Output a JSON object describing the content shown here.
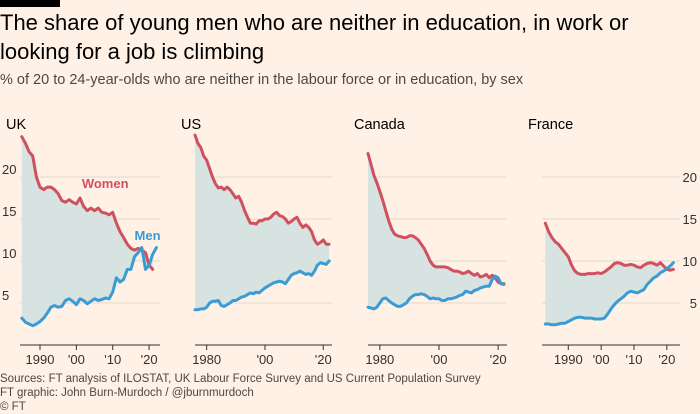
{
  "title": "The share of young men who are neither in education, in work or looking for a job is climbing",
  "subtitle": "% of 20 to 24-year-olds who are neither in the labour force or in education, by sex",
  "sources": "Sources: FT analysis of ILOSTAT, UK Labour Force Survey and US Current Population Survey",
  "credit": "FT graphic: John Burn-Murdoch / @jburnmurdoch",
  "copyright": "© FT",
  "colors": {
    "background": "#fff1e5",
    "women": "#d0505f",
    "men": "#3a9bd5",
    "fill": "#d6e3e0",
    "axis": "#33302e",
    "grid": "#e3d6cb"
  },
  "chart_data": [
    {
      "type": "line",
      "panel": "UK",
      "ylim": [
        0,
        25
      ],
      "yticks": [
        5,
        10,
        15,
        20
      ],
      "xlim": [
        1984.5,
        2023
      ],
      "xticks": [
        1990,
        2000,
        2010,
        2020
      ],
      "xtick_labels": [
        "1990",
        "'00",
        "'10",
        "'20"
      ],
      "women_label": "Women",
      "men_label": "Men",
      "series": [
        {
          "name": "Women",
          "x": [
            1985,
            1986,
            1987,
            1988,
            1989,
            1990,
            1991,
            1992,
            1993,
            1994,
            1995,
            1996,
            1997,
            1998,
            1999,
            2000,
            2001,
            2002,
            2003,
            2004,
            2005,
            2006,
            2007,
            2008,
            2009,
            2010,
            2011,
            2012,
            2013,
            2014,
            2015,
            2016,
            2017,
            2018,
            2019,
            2020,
            2021
          ],
          "values": [
            24.8,
            24,
            23,
            22.5,
            20,
            18.8,
            18.5,
            18.8,
            18.8,
            18.5,
            18,
            17.2,
            17,
            17.3,
            17,
            16.8,
            17.5,
            16.5,
            16,
            16.3,
            16,
            16.3,
            15.8,
            15.7,
            15.5,
            15.8,
            14.5,
            13.5,
            12.8,
            12,
            11.5,
            11.3,
            11.5,
            11.3,
            11,
            9.5,
            9
          ]
        },
        {
          "name": "Men",
          "x": [
            1985,
            1986,
            1987,
            1988,
            1989,
            1990,
            1991,
            1992,
            1993,
            1994,
            1995,
            1996,
            1997,
            1998,
            1999,
            2000,
            2001,
            2002,
            2003,
            2004,
            2005,
            2006,
            2007,
            2008,
            2009,
            2010,
            2011,
            2012,
            2013,
            2014,
            2015,
            2016,
            2017,
            2018,
            2019,
            2020,
            2021,
            2022
          ],
          "values": [
            3.2,
            2.7,
            2.5,
            2.3,
            2.5,
            2.8,
            3.2,
            3.8,
            4.5,
            4.7,
            4.5,
            4.6,
            5.3,
            5.5,
            5.2,
            4.8,
            5.5,
            5.3,
            4.9,
            5.2,
            5.5,
            5.3,
            5.4,
            5.6,
            5.5,
            6.3,
            8,
            7.5,
            7.8,
            9,
            9,
            10.5,
            11,
            11.6,
            9,
            9.5,
            10.8,
            11.6
          ]
        }
      ]
    },
    {
      "type": "line",
      "panel": "US",
      "ylim": [
        0,
        25
      ],
      "yticks": [
        5,
        10,
        15,
        20
      ],
      "xlim": [
        1976,
        2023
      ],
      "xticks": [
        1980,
        2000,
        2020
      ],
      "xtick_labels": [
        "1980",
        "'00",
        "'20"
      ],
      "series": [
        {
          "name": "Women",
          "x": [
            1976,
            1977,
            1978,
            1979,
            1980,
            1981,
            1982,
            1983,
            1984,
            1985,
            1986,
            1987,
            1988,
            1989,
            1990,
            1991,
            1992,
            1993,
            1994,
            1995,
            1996,
            1997,
            1998,
            1999,
            2000,
            2001,
            2002,
            2003,
            2004,
            2005,
            2006,
            2007,
            2008,
            2009,
            2010,
            2011,
            2012,
            2013,
            2014,
            2015,
            2016,
            2017,
            2018,
            2019,
            2020,
            2021,
            2022
          ],
          "values": [
            25,
            24,
            23.5,
            22.5,
            22,
            21,
            20,
            19.2,
            18.7,
            18.8,
            18.5,
            18.8,
            18.5,
            18,
            17.5,
            17.7,
            17,
            16,
            15.2,
            14.5,
            14.5,
            14.4,
            14.8,
            14.8,
            15,
            15,
            15.2,
            15.6,
            15.8,
            15.4,
            15.3,
            15,
            14.5,
            14.7,
            15,
            15.2,
            14.5,
            14,
            14.3,
            14,
            13.5,
            12.5,
            12,
            12.2,
            12.5,
            12,
            12
          ]
        },
        {
          "name": "Men",
          "x": [
            1976,
            1977,
            1978,
            1979,
            1980,
            1981,
            1982,
            1983,
            1984,
            1985,
            1986,
            1987,
            1988,
            1989,
            1990,
            1991,
            1992,
            1993,
            1994,
            1995,
            1996,
            1997,
            1998,
            1999,
            2000,
            2001,
            2002,
            2003,
            2004,
            2005,
            2006,
            2007,
            2008,
            2009,
            2010,
            2011,
            2012,
            2013,
            2014,
            2015,
            2016,
            2017,
            2018,
            2019,
            2020,
            2021,
            2022
          ],
          "values": [
            4.2,
            4.2,
            4.3,
            4.3,
            4.5,
            5,
            5.2,
            5.2,
            5.3,
            4.7,
            4.6,
            4.8,
            5,
            5.3,
            5.3,
            5.5,
            5.7,
            5.8,
            6,
            6.2,
            6.1,
            6.3,
            6.2,
            6.5,
            6.8,
            7,
            7.2,
            7.4,
            7.5,
            7.6,
            7.5,
            7.3,
            7.8,
            8.3,
            8.5,
            8.6,
            8.8,
            8.6,
            8.4,
            8.5,
            8.3,
            8.8,
            9.5,
            9.8,
            9.7,
            9.6,
            10
          ]
        }
      ]
    },
    {
      "type": "line",
      "panel": "Canada",
      "ylim": [
        0,
        25
      ],
      "yticks": [
        5,
        10,
        15,
        20
      ],
      "xlim": [
        1976,
        2023
      ],
      "xticks": [
        1980,
        2000,
        2020
      ],
      "xtick_labels": [
        "1980",
        "'00",
        "'20"
      ],
      "series": [
        {
          "name": "Women",
          "x": [
            1976,
            1977,
            1978,
            1979,
            1980,
            1981,
            1982,
            1983,
            1984,
            1985,
            1986,
            1987,
            1988,
            1989,
            1990,
            1991,
            1992,
            1993,
            1994,
            1995,
            1996,
            1997,
            1998,
            1999,
            2000,
            2001,
            2002,
            2003,
            2004,
            2005,
            2006,
            2007,
            2008,
            2009,
            2010,
            2011,
            2012,
            2013,
            2014,
            2015,
            2016,
            2017,
            2018,
            2019,
            2020,
            2021,
            2022
          ],
          "values": [
            22.8,
            21.5,
            20.2,
            19.3,
            18.3,
            17.2,
            16,
            14.8,
            13.8,
            13.2,
            13,
            12.9,
            12.8,
            12.8,
            13,
            13,
            12.8,
            12.5,
            12,
            11.5,
            10.8,
            10,
            9.5,
            9.3,
            9.3,
            9.3,
            9.3,
            9.2,
            9,
            8.8,
            8.8,
            8.7,
            8.5,
            8.6,
            8.8,
            8.5,
            8.3,
            8.5,
            8.1,
            8.2,
            8.4,
            8,
            8.3,
            8,
            7.5,
            7.3,
            7.3
          ]
        },
        {
          "name": "Men",
          "x": [
            1976,
            1977,
            1978,
            1979,
            1980,
            1981,
            1982,
            1983,
            1984,
            1985,
            1986,
            1987,
            1988,
            1989,
            1990,
            1991,
            1992,
            1993,
            1994,
            1995,
            1996,
            1997,
            1998,
            1999,
            2000,
            2001,
            2002,
            2003,
            2004,
            2005,
            2006,
            2007,
            2008,
            2009,
            2010,
            2011,
            2012,
            2013,
            2014,
            2015,
            2016,
            2017,
            2018,
            2019,
            2020,
            2021,
            2022
          ],
          "values": [
            4.5,
            4.4,
            4.3,
            4.5,
            5,
            5.5,
            5.6,
            5.3,
            5,
            4.8,
            4.6,
            4.6,
            4.8,
            5,
            5.5,
            5.8,
            6,
            6,
            6.1,
            6,
            5.8,
            5.5,
            5.6,
            5.5,
            5.5,
            5.3,
            5.3,
            5.5,
            5.5,
            5.6,
            5.7,
            5.9,
            6,
            6.4,
            6.3,
            6.2,
            6.5,
            6.6,
            6.8,
            6.9,
            7,
            7,
            7.8,
            8.2,
            8,
            7.3,
            7.2
          ]
        }
      ]
    },
    {
      "type": "line",
      "panel": "France",
      "ylim": [
        0,
        25
      ],
      "yticks": [
        5,
        10,
        15,
        20
      ],
      "xlim": [
        1982,
        2024
      ],
      "xticks": [
        1990,
        2000,
        2010,
        2020
      ],
      "xtick_labels": [
        "1990",
        "'00",
        "'10",
        "'20"
      ],
      "series": [
        {
          "name": "Women",
          "x": [
            1983,
            1984,
            1985,
            1986,
            1987,
            1988,
            1989,
            1990,
            1991,
            1992,
            1993,
            1994,
            1995,
            1996,
            1997,
            1998,
            1999,
            2000,
            2001,
            2002,
            2003,
            2004,
            2005,
            2006,
            2007,
            2008,
            2009,
            2010,
            2011,
            2012,
            2013,
            2014,
            2015,
            2016,
            2017,
            2018,
            2019,
            2020,
            2021,
            2022
          ],
          "values": [
            14.5,
            13.5,
            12.8,
            12.3,
            12,
            11.5,
            11,
            10.5,
            9.5,
            8.8,
            8.5,
            8.4,
            8.4,
            8.5,
            8.5,
            8.5,
            8.6,
            8.5,
            8.7,
            9,
            9.3,
            9.7,
            9.8,
            9.7,
            9.5,
            9.5,
            9.6,
            9.5,
            9.3,
            9.2,
            9.5,
            9.7,
            9.8,
            9.7,
            9.5,
            9.8,
            9.4,
            9,
            8.9,
            9
          ]
        },
        {
          "name": "Men",
          "x": [
            1983,
            1984,
            1985,
            1986,
            1987,
            1988,
            1989,
            1990,
            1991,
            1992,
            1993,
            1994,
            1995,
            1996,
            1997,
            1998,
            1999,
            2000,
            2001,
            2002,
            2003,
            2004,
            2005,
            2006,
            2007,
            2008,
            2009,
            2010,
            2011,
            2012,
            2013,
            2014,
            2015,
            2016,
            2017,
            2018,
            2019,
            2020,
            2021,
            2022
          ],
          "values": [
            2.5,
            2.5,
            2.4,
            2.4,
            2.5,
            2.6,
            2.6,
            2.8,
            3,
            3.2,
            3.3,
            3.3,
            3.2,
            3.2,
            3.2,
            3.1,
            3.1,
            3.1,
            3.2,
            3.7,
            4.3,
            4.8,
            5.2,
            5.5,
            5.8,
            6.2,
            6.4,
            6.3,
            6.2,
            6.4,
            6.6,
            7.2,
            7.6,
            8,
            8.2,
            8.6,
            8.8,
            9.1,
            9.4,
            9.8
          ]
        }
      ]
    }
  ]
}
